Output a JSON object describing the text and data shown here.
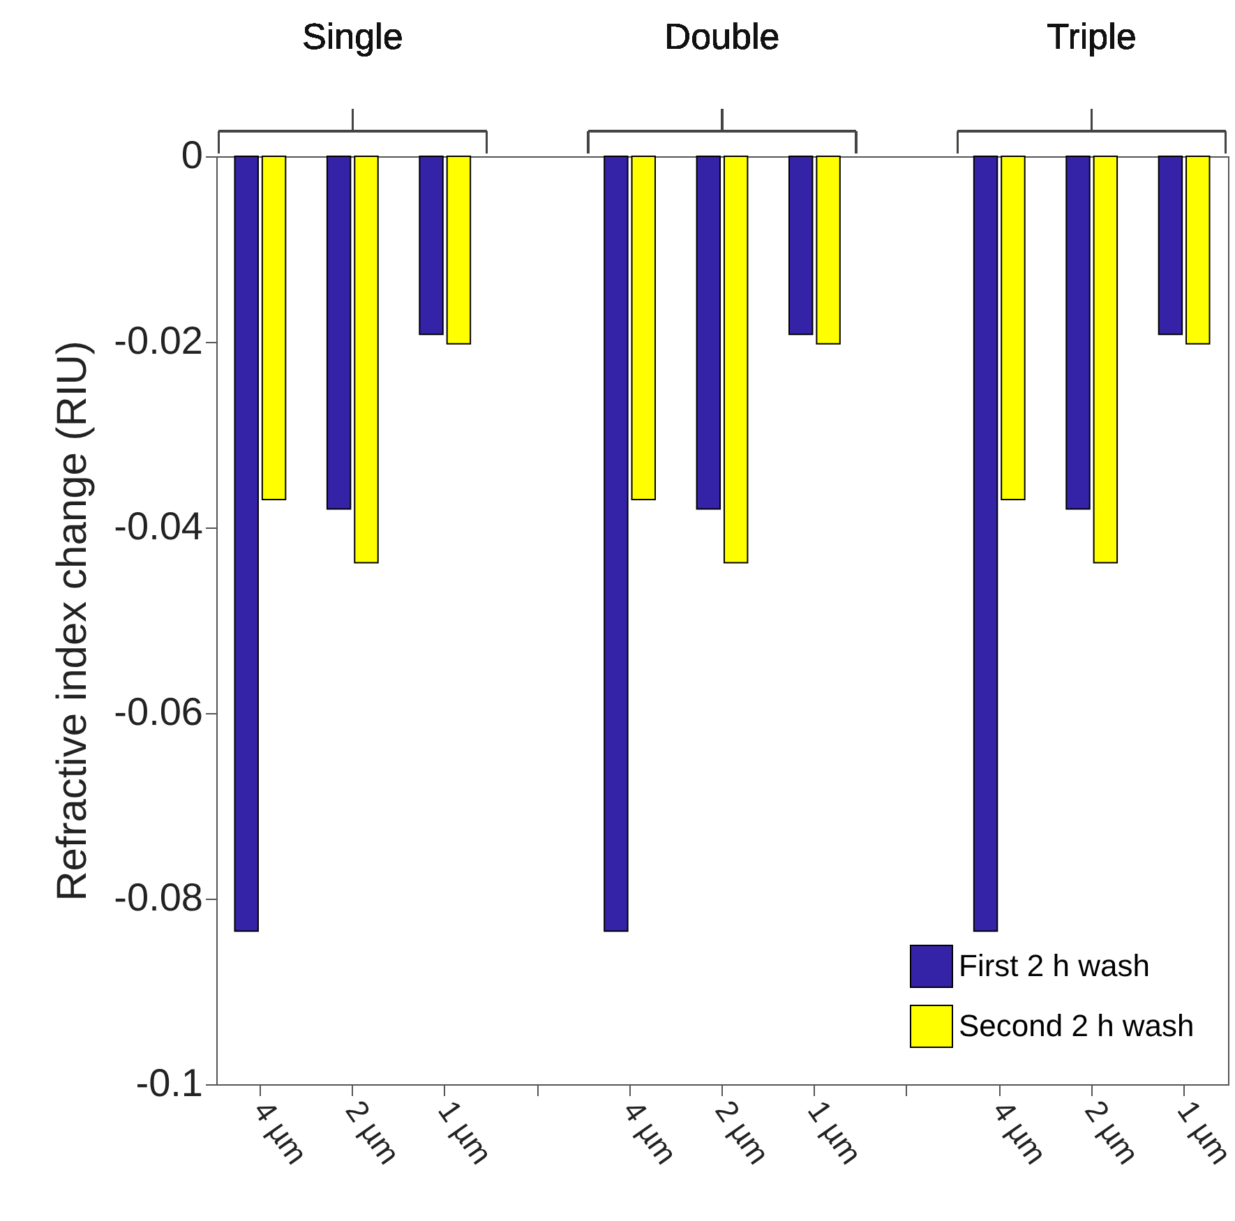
{
  "chart_data": {
    "type": "bar",
    "ylabel": "Refractive index change (RIU)",
    "categories": [
      "4 µm",
      "2 µm",
      "1 µm",
      null,
      "4 µm",
      "2 µm",
      "1 µm",
      null,
      "4 µm",
      "2 µm",
      "1 µm"
    ],
    "series": [
      {
        "name": "First 2 h wash",
        "color": "#3423a6",
        "values": [
          -0.0835,
          -0.038,
          -0.0192,
          null,
          -0.0835,
          -0.038,
          -0.0192,
          null,
          -0.0835,
          -0.038,
          -0.0192
        ]
      },
      {
        "name": "Second 2 h wash",
        "color": "#ffff00",
        "values": [
          -0.037,
          -0.0438,
          -0.0202,
          null,
          -0.037,
          -0.0438,
          -0.0202,
          null,
          -0.037,
          -0.0438,
          -0.0202
        ]
      }
    ],
    "annotations": [
      "Single",
      "Double",
      "Triple"
    ],
    "ylim": [
      -0.1,
      0
    ],
    "yticks": [
      0,
      -0.02,
      -0.04,
      -0.06,
      -0.08,
      -0.1
    ],
    "legend": "bottom right",
    "grid": false
  }
}
